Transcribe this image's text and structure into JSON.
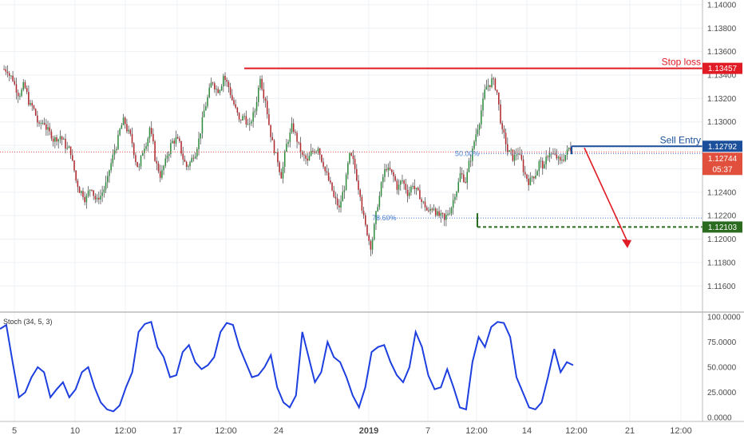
{
  "colors": {
    "background": "#ffffff",
    "grid": "#eef1f5",
    "axis_text": "#4a4a4a",
    "bull": "#2e8b3e",
    "bear": "#b0282e",
    "wick": "#555555",
    "stop_loss": "#e01b24",
    "sell_entry": "#1b4f9c",
    "current_price": "#e0503c",
    "take_profit": "#2b6b1f",
    "fib": "#4a7fd6",
    "stoch_line": "#1e3fe0",
    "divider": "#9a9a9a"
  },
  "price_axis": {
    "labels": [
      "1.14000",
      "1.13800",
      "1.13600",
      "1.13400",
      "1.13200",
      "1.13000",
      "1.12800",
      "1.12600",
      "1.12400",
      "1.12200",
      "1.12000",
      "1.11800",
      "1.11600"
    ],
    "min": 1.1152,
    "max": 1.1402
  },
  "stoch_axis": {
    "labels": [
      "100.0000",
      "75.0000",
      "50.0000",
      "25.0000",
      "0.0000"
    ],
    "min": 0,
    "max": 100
  },
  "time_axis": {
    "labels": [
      "5",
      "10",
      "12:00",
      "17",
      "12:00",
      "24",
      "2019",
      "7",
      "12:00",
      "14",
      "12:00",
      "21",
      "12:00"
    ],
    "bold_label": "2019"
  },
  "levels": {
    "stop_loss": {
      "label": "Stop loss",
      "price_label": "1.13457",
      "value": 1.13457
    },
    "sell_entry": {
      "label": "Sell Entry",
      "price_label": "1.12792",
      "value": 1.12792
    },
    "current_price": {
      "price_label": "1.12744",
      "countdown": "05:37",
      "value": 1.12744
    },
    "take_profit": {
      "price_label": "1.12103",
      "value": 1.12103
    },
    "fib_50": {
      "label": "50.00%",
      "value": 1.1273
    },
    "fib_786": {
      "label": "78.60%",
      "value": 1.1218
    }
  },
  "stoch": {
    "title": "Stoch (34, 5, 3)"
  },
  "chart_data": {
    "type": "candlestick",
    "instrument_levels": {
      "stop_loss": 1.13457,
      "sell_entry": 1.12792,
      "take_profit": 1.12103,
      "current": 1.12744
    },
    "price_series": [
      1.1345,
      1.1337,
      1.1325,
      1.133,
      1.1318,
      1.131,
      1.1295,
      1.13,
      1.129,
      1.1285,
      1.1288,
      1.128,
      1.1275,
      1.125,
      1.124,
      1.1235,
      1.1245,
      1.1232,
      1.124,
      1.125,
      1.127,
      1.1285,
      1.13,
      1.129,
      1.1275,
      1.126,
      1.128,
      1.1295,
      1.127,
      1.1255,
      1.1265,
      1.128,
      1.1285,
      1.1275,
      1.1262,
      1.1268,
      1.128,
      1.13,
      1.132,
      1.1335,
      1.1328,
      1.134,
      1.133,
      1.1315,
      1.13,
      1.1305,
      1.1295,
      1.131,
      1.134,
      1.132,
      1.129,
      1.127,
      1.1255,
      1.128,
      1.1295,
      1.1285,
      1.127,
      1.1265,
      1.1275,
      1.128,
      1.1265,
      1.125,
      1.1235,
      1.1225,
      1.1245,
      1.127,
      1.126,
      1.124,
      1.121,
      1.1195,
      1.122,
      1.1245,
      1.1262,
      1.1255,
      1.1245,
      1.125,
      1.124,
      1.1248,
      1.1238,
      1.123,
      1.1222,
      1.1228,
      1.122,
      1.1215,
      1.1225,
      1.124,
      1.1255,
      1.125,
      1.127,
      1.129,
      1.131,
      1.133,
      1.1335,
      1.1325,
      1.129,
      1.1275,
      1.127,
      1.1275,
      1.126,
      1.125,
      1.1255,
      1.1265,
      1.126,
      1.1275,
      1.127,
      1.1265,
      1.1272,
      1.1278
    ],
    "stoch_series": [
      88,
      92,
      55,
      20,
      25,
      40,
      50,
      45,
      20,
      28,
      35,
      20,
      28,
      45,
      50,
      30,
      15,
      8,
      6,
      12,
      30,
      45,
      85,
      93,
      95,
      70,
      60,
      40,
      42,
      65,
      72,
      55,
      48,
      52,
      60,
      85,
      94,
      92,
      70,
      55,
      40,
      42,
      50,
      62,
      30,
      15,
      10,
      22,
      85,
      60,
      35,
      45,
      75,
      60,
      55,
      40,
      22,
      10,
      30,
      65,
      70,
      72,
      55,
      42,
      35,
      50,
      85,
      70,
      42,
      28,
      30,
      48,
      30,
      10,
      8,
      55,
      80,
      70,
      90,
      95,
      94,
      80,
      40,
      25,
      10,
      8,
      15,
      40,
      68,
      45,
      55,
      52
    ],
    "x_labels": [
      "5",
      "10",
      "12:00",
      "17",
      "12:00",
      "24",
      "2019",
      "7",
      "12:00",
      "14",
      "12:00",
      "21",
      "12:00"
    ],
    "y_range": [
      1.1152,
      1.1402
    ],
    "stoch_range": [
      0,
      100
    ],
    "annotations": [
      "Stop loss",
      "Sell Entry",
      "50.00%",
      "78.60%"
    ]
  }
}
